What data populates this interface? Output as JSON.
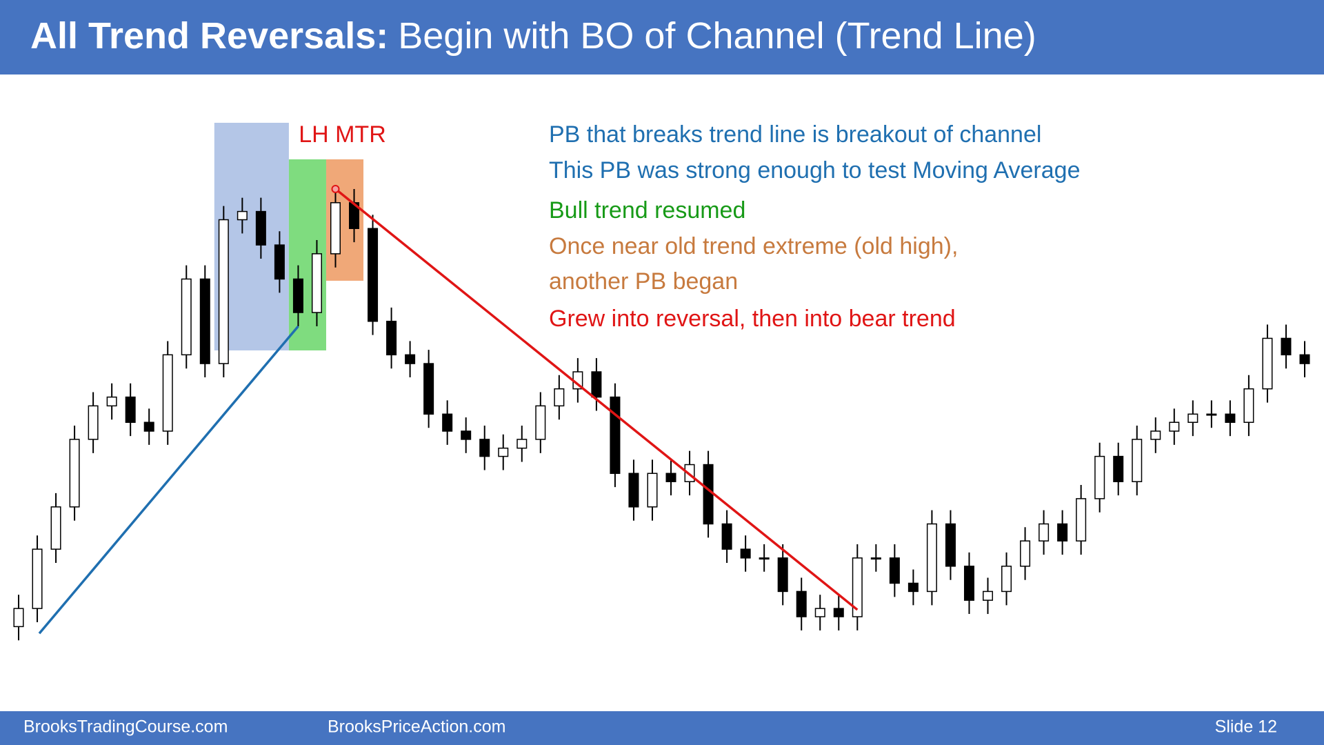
{
  "header": {
    "title_bold": "All Trend Reversals:",
    "title_rest": "Begin with BO of Channel (Trend Line)"
  },
  "chart_data": {
    "type": "candlestick",
    "annotation": "LH MTR",
    "ylim": [
      0,
      100
    ],
    "open": [
      9,
      12.3,
      23.1,
      30.8,
      43.1,
      49.2,
      50.8,
      46.2,
      44.6,
      58.5,
      72.3,
      56.9,
      83.1,
      84.6,
      78.5,
      72.3,
      66.2,
      76.9,
      86.2,
      81.5,
      64.6,
      58.5,
      56.9,
      47.7,
      44.6,
      43.1,
      40,
      41.5,
      43.1,
      49.2,
      52.3,
      55.4,
      50.8,
      36.9,
      30.8,
      36.9,
      35.4,
      38.5,
      27.7,
      23.1,
      21.5,
      21.5,
      15.4,
      10.8,
      12.3,
      10.8,
      21.5,
      21.5,
      16.9,
      15.4,
      27.7,
      20,
      13.8,
      15.4,
      20,
      24.6,
      27.7,
      24.6,
      32.3,
      40,
      35.4,
      43.1,
      44.6,
      46.2,
      47.7,
      47.7,
      46.2,
      52.3,
      61.5,
      58.5
    ],
    "high": [
      14.8,
      25.6,
      33.3,
      45.6,
      51.7,
      53.3,
      53.3,
      48.7,
      61,
      74.8,
      74.8,
      85.6,
      87.1,
      87.1,
      81,
      74.8,
      79.4,
      88.7,
      88.7,
      84,
      67.1,
      61,
      59.4,
      50.2,
      47.1,
      45.6,
      44,
      45.6,
      51.7,
      54.8,
      57.9,
      57.9,
      53.3,
      39.4,
      39.4,
      39.4,
      41,
      41,
      30.2,
      25.6,
      24,
      24,
      17.9,
      14.8,
      14.8,
      24,
      24,
      24,
      19.4,
      30.2,
      30.2,
      22.5,
      17.9,
      22.5,
      27.1,
      30.2,
      30.2,
      34.8,
      42.5,
      42.5,
      45.6,
      47.1,
      48.7,
      50.2,
      50.2,
      50.2,
      54.8,
      64,
      64,
      61
    ],
    "low": [
      6.5,
      9.8,
      20.6,
      28.3,
      40.6,
      46.7,
      43.7,
      42.1,
      42.1,
      56,
      54.4,
      54.4,
      80.6,
      76,
      69.8,
      63.7,
      63.7,
      74.4,
      79,
      62.1,
      56,
      54.4,
      45.2,
      42.1,
      40.6,
      37.5,
      37.5,
      39,
      40.6,
      46.7,
      49.8,
      48.3,
      34.4,
      28.3,
      28.3,
      32.9,
      32.9,
      25.2,
      20.6,
      19,
      19,
      12.9,
      8.3,
      8.3,
      8.3,
      8.3,
      19,
      14.4,
      12.9,
      12.9,
      17.5,
      11.3,
      11.3,
      12.9,
      17.5,
      22.1,
      22.1,
      22.1,
      29.8,
      32.9,
      32.9,
      40.6,
      42.1,
      43.7,
      45.2,
      43.7,
      43.7,
      49.8,
      56,
      54.4
    ],
    "close": [
      12.3,
      23.1,
      30.8,
      43.1,
      49.2,
      50.8,
      46.2,
      44.6,
      58.5,
      72.3,
      56.9,
      83.1,
      84.6,
      78.5,
      72.3,
      66.2,
      76.9,
      86.2,
      81.5,
      64.6,
      58.5,
      56.9,
      47.7,
      44.6,
      43.1,
      40,
      41.5,
      43.1,
      49.2,
      52.3,
      55.4,
      50.8,
      36.9,
      30.8,
      36.9,
      35.4,
      38.5,
      27.7,
      23.1,
      21.5,
      21.5,
      15.4,
      10.8,
      12.3,
      10.8,
      21.5,
      21.5,
      16.9,
      15.4,
      27.7,
      20,
      13.8,
      15.4,
      20,
      24.6,
      27.7,
      24.6,
      32.3,
      40,
      35.4,
      43.1,
      44.6,
      46.2,
      47.7,
      47.7,
      46.2,
      52.3,
      61.5,
      58.5,
      56.9
    ]
  },
  "notes": [
    {
      "text": "PB that breaks trend line is breakout of channel",
      "color": "#1f6fb0"
    },
    {
      "text": "This PB was strong enough to test Moving Average",
      "color": "#1f6fb0"
    },
    {
      "text": "Bull trend resumed",
      "color": "#179a17"
    },
    {
      "text": "Once near old trend extreme (old high),",
      "color": "#c77a3e"
    },
    {
      "text": "another PB began",
      "color": "#c77a3e"
    },
    {
      "text": "Grew into reversal, then into bear trend",
      "color": "#e01515"
    }
  ],
  "footer": {
    "left": "BrooksTradingCourse.com",
    "center": "BrooksPriceAction.com",
    "right": "Slide 12"
  }
}
